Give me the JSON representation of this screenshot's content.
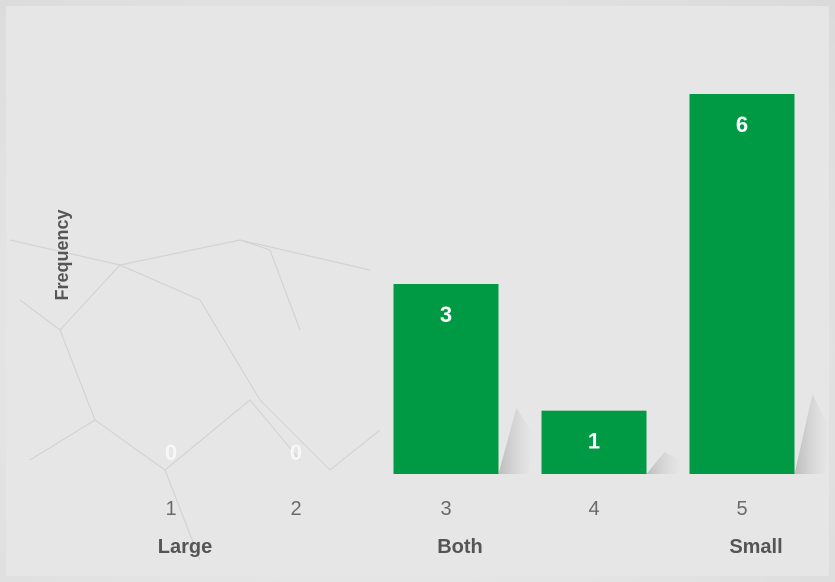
{
  "chart_data": {
    "type": "bar",
    "categories": [
      "1",
      "2",
      "3",
      "4",
      "5"
    ],
    "values": [
      0,
      0,
      3,
      1,
      6
    ],
    "ylabel": "Frequency",
    "xlabel": "",
    "group_labels": [
      {
        "label": "Large",
        "under": "1"
      },
      {
        "label": "Both",
        "under": "3"
      },
      {
        "label": "Small",
        "under": "5"
      }
    ],
    "ylim": [
      0,
      6
    ],
    "grid": false,
    "bar_color": "#009a44",
    "label_color": "#ffffff",
    "zero_label_color": "#f7f7f7"
  }
}
